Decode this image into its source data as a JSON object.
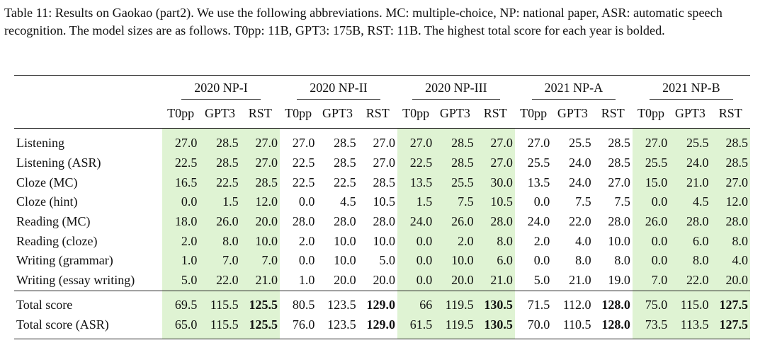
{
  "caption": "Table 11: Results on Gaokao (part2). We use the following abbreviations. MC: multiple-choice, NP: national paper, ASR: automatic speech recognition. The model sizes are as follows. T0pp: 11B, GPT3: 175B, RST: 11B. The highest total score for each year is bolded.",
  "groups": [
    "2020 NP-I",
    "2020 NP-II",
    "2020 NP-III",
    "2021 NP-A",
    "2021 NP-B"
  ],
  "models": [
    "T0pp",
    "GPT3",
    "RST"
  ],
  "rows": [
    {
      "label": "Listening",
      "values": [
        "27.0",
        "28.5",
        "27.0",
        "27.0",
        "28.5",
        "27.0",
        "27.0",
        "28.5",
        "27.0",
        "27.0",
        "25.5",
        "28.5",
        "27.0",
        "25.5",
        "28.5"
      ]
    },
    {
      "label": "Listening (ASR)",
      "values": [
        "22.5",
        "28.5",
        "27.0",
        "22.5",
        "28.5",
        "27.0",
        "22.5",
        "28.5",
        "27.0",
        "25.5",
        "24.0",
        "28.5",
        "25.5",
        "24.0",
        "28.5"
      ]
    },
    {
      "label": "Cloze (MC)",
      "values": [
        "16.5",
        "22.5",
        "28.5",
        "22.5",
        "22.5",
        "28.5",
        "13.5",
        "25.5",
        "30.0",
        "13.5",
        "24.0",
        "27.0",
        "15.0",
        "21.0",
        "27.0"
      ]
    },
    {
      "label": "Cloze (hint)",
      "values": [
        "0.0",
        "1.5",
        "12.0",
        "0.0",
        "4.5",
        "10.5",
        "1.5",
        "7.5",
        "10.5",
        "0.0",
        "7.5",
        "7.5",
        "0.0",
        "4.5",
        "12.0"
      ]
    },
    {
      "label": "Reading (MC)",
      "values": [
        "18.0",
        "26.0",
        "20.0",
        "28.0",
        "28.0",
        "28.0",
        "24.0",
        "26.0",
        "28.0",
        "24.0",
        "22.0",
        "28.0",
        "26.0",
        "28.0",
        "28.0"
      ]
    },
    {
      "label": "Reading (cloze)",
      "values": [
        "2.0",
        "8.0",
        "10.0",
        "2.0",
        "10.0",
        "10.0",
        "0.0",
        "2.0",
        "8.0",
        "2.0",
        "4.0",
        "10.0",
        "0.0",
        "6.0",
        "8.0"
      ]
    },
    {
      "label": "Writing (grammar)",
      "values": [
        "1.0",
        "7.0",
        "7.0",
        "0.0",
        "10.0",
        "5.0",
        "0.0",
        "10.0",
        "6.0",
        "0.0",
        "8.0",
        "8.0",
        "0.0",
        "8.0",
        "4.0"
      ]
    },
    {
      "label": "Writing (essay writing)",
      "values": [
        "5.0",
        "22.0",
        "21.0",
        "1.0",
        "20.0",
        "20.0",
        "0.0",
        "20.0",
        "21.0",
        "5.0",
        "21.0",
        "19.0",
        "7.0",
        "22.0",
        "20.0"
      ]
    }
  ],
  "totals": [
    {
      "label": "Total score",
      "values": [
        "69.5",
        "115.5",
        "125.5",
        "80.5",
        "123.5",
        "129.0",
        "66",
        "119.5",
        "130.5",
        "71.5",
        "112.0",
        "128.0",
        "75.0",
        "115.0",
        "127.5"
      ]
    },
    {
      "label": "Total score (ASR)",
      "values": [
        "65.0",
        "115.5",
        "125.5",
        "76.0",
        "123.5",
        "129.0",
        "61.5",
        "119.5",
        "130.5",
        "70.0",
        "110.5",
        "128.0",
        "73.5",
        "113.5",
        "127.5"
      ]
    }
  ],
  "bold_total_column_index": [
    2,
    5,
    8,
    11,
    14
  ],
  "highlight_color": "#dff3d3",
  "highlighted_groups": [
    0,
    2,
    4
  ]
}
